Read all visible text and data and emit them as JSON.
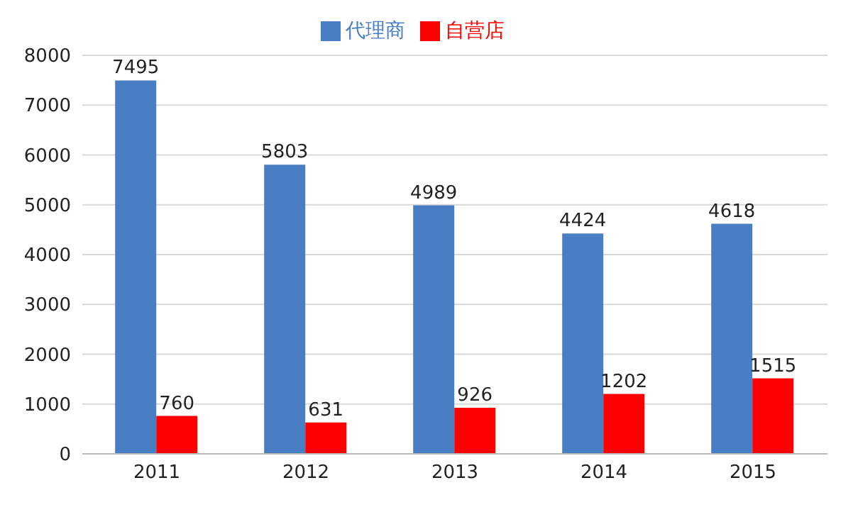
{
  "chart_data": {
    "type": "bar",
    "categories": [
      "2011",
      "2012",
      "2013",
      "2014",
      "2015"
    ],
    "series": [
      {
        "name": "代理商",
        "color": "#4a7ec4",
        "values": [
          7495,
          5803,
          4989,
          4424,
          4618
        ]
      },
      {
        "name": "自营店",
        "color": "#ff0000",
        "values": [
          760,
          631,
          926,
          1202,
          1515
        ]
      }
    ],
    "ylim": [
      0,
      8000
    ],
    "yticks": [
      0,
      1000,
      2000,
      3000,
      4000,
      5000,
      6000,
      7000,
      8000
    ],
    "grid": "y",
    "legend": "top",
    "data_labels": true
  }
}
